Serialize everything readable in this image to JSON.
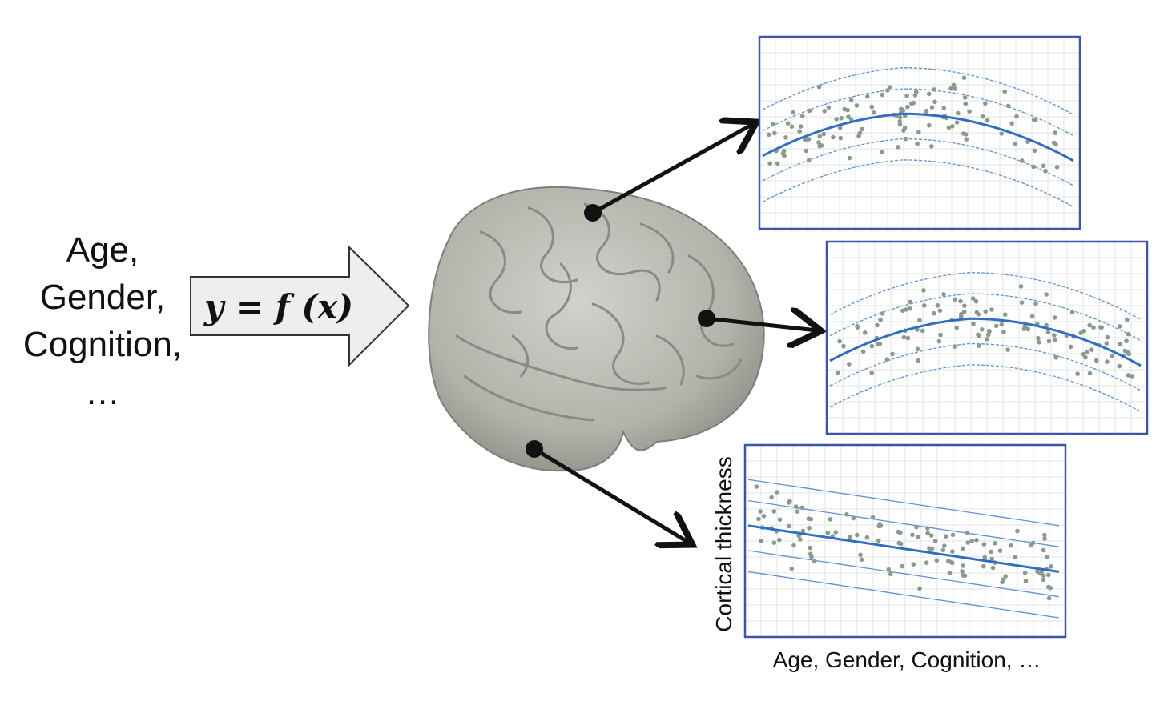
{
  "covariates": {
    "lines": [
      "Age,",
      "Gender,",
      "Cognition,",
      "…"
    ]
  },
  "formula": {
    "text": "y = f (x)"
  },
  "plots": {
    "ylabel": "Cortical thickness",
    "xlabel": "Age, Gender, Cognition, …"
  },
  "colors": {
    "frame": "#3d55a8",
    "fit_line": "#2f6fc2",
    "centile_line": "#5b93d6",
    "points": "#8a9a8c",
    "brain": "#b6b5ae",
    "arrow": "#111111"
  },
  "chart_data": [
    {
      "type": "scatter",
      "shape": "inverted-u",
      "description_source": "top plot",
      "x": [
        0.05,
        0.1,
        0.15,
        0.2,
        0.25,
        0.3,
        0.35,
        0.4,
        0.45,
        0.5,
        0.55,
        0.6,
        0.65,
        0.7,
        0.75,
        0.8,
        0.85,
        0.9,
        0.95
      ]
    },
    {
      "type": "scatter",
      "shape": "inverted-u",
      "description_source": "middle plot",
      "x": [
        0.05,
        0.1,
        0.15,
        0.2,
        0.25,
        0.3,
        0.35,
        0.4,
        0.45,
        0.5,
        0.55,
        0.6,
        0.65,
        0.7,
        0.75,
        0.8,
        0.85,
        0.9,
        0.95
      ]
    },
    {
      "type": "scatter",
      "shape": "linear-decline",
      "description_source": "bottom plot",
      "x": [
        0.05,
        0.1,
        0.15,
        0.2,
        0.25,
        0.3,
        0.35,
        0.4,
        0.45,
        0.5,
        0.55,
        0.6,
        0.65,
        0.7,
        0.75,
        0.8,
        0.85,
        0.9,
        0.95
      ]
    }
  ]
}
